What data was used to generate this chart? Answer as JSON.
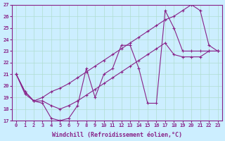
{
  "xlabel": "Windchill (Refroidissement éolien,°C)",
  "ylabel": "",
  "bg_color": "#cceeff",
  "grid_color": "#b0ddd0",
  "line_color": "#882288",
  "xlim": [
    -0.5,
    23.5
  ],
  "ylim": [
    17,
    27
  ],
  "xticks": [
    0,
    1,
    2,
    3,
    4,
    5,
    6,
    7,
    8,
    9,
    10,
    11,
    12,
    13,
    14,
    15,
    16,
    17,
    18,
    19,
    20,
    21,
    22,
    23
  ],
  "yticks": [
    17,
    18,
    19,
    20,
    21,
    22,
    23,
    24,
    25,
    26,
    27
  ],
  "line1_x": [
    0,
    1,
    2,
    3,
    4,
    5,
    6,
    7,
    8,
    9,
    10,
    11,
    12,
    13,
    14,
    15,
    16,
    17,
    18,
    19,
    20,
    21,
    22,
    23
  ],
  "line1_y": [
    21,
    19.5,
    18.7,
    18.5,
    17.2,
    17.0,
    17.2,
    18.3,
    21.5,
    19.0,
    21.0,
    21.5,
    23.5,
    23.5,
    21.5,
    18.5,
    18.5,
    26.5,
    25.0,
    23.0,
    23.0,
    23.0,
    23.0,
    23.0
  ],
  "line2_x": [
    0,
    1,
    2,
    3,
    4,
    5,
    6,
    7,
    8,
    9,
    10,
    11,
    12,
    13,
    14,
    15,
    16,
    17,
    18,
    19,
    20,
    21,
    22,
    23
  ],
  "line2_y": [
    21,
    19.5,
    18.7,
    19.0,
    19.5,
    19.8,
    20.2,
    20.7,
    21.2,
    21.7,
    22.2,
    22.7,
    23.2,
    23.7,
    24.2,
    24.7,
    25.2,
    25.7,
    26.0,
    26.5,
    27.0,
    26.5,
    23.5,
    23.0
  ],
  "line3_x": [
    0,
    1,
    2,
    3,
    4,
    5,
    6,
    7,
    8,
    9,
    10,
    11,
    12,
    13,
    14,
    15,
    16,
    17,
    18,
    19,
    20,
    21,
    22,
    23
  ],
  "line3_y": [
    21,
    19.3,
    18.7,
    18.7,
    18.3,
    18.0,
    18.3,
    18.7,
    19.2,
    19.7,
    20.2,
    20.7,
    21.2,
    21.7,
    22.2,
    22.7,
    23.2,
    23.7,
    22.7,
    22.5,
    22.5,
    22.5,
    23.0,
    23.0
  ],
  "marker": "+",
  "markersize": 3,
  "linewidth": 0.8,
  "tick_fontsize": 5,
  "xlabel_fontsize": 6
}
